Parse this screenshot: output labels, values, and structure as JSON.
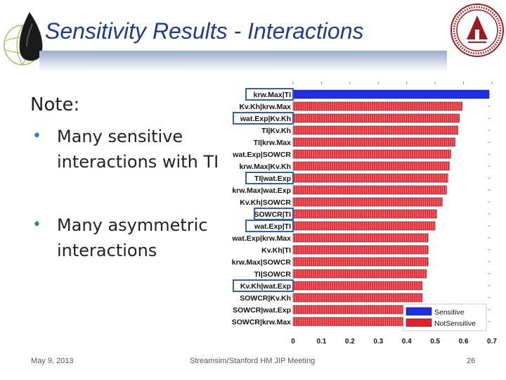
{
  "slide": {
    "title": "Sensitivity Results - Interactions",
    "note": "Note:",
    "bullets": [
      "Many sensitive interactions with TI",
      "Many asymmetric interactions"
    ],
    "footer": {
      "date": "May 9, 2013",
      "center": "Streamsim/Stanford HM JIP Meeting",
      "page": "26"
    }
  },
  "colors": {
    "title": "#1f3a8f",
    "bullet": "#2b7fb8",
    "sensitive": "#1f2fe0",
    "not_sensitive": "#e0202a",
    "highlight_box": "#3b5f9e"
  },
  "icons": {
    "left_logo": "globe-drop-logo",
    "right_logo": "university-seal"
  },
  "chart_data": {
    "type": "bar",
    "orientation": "horizontal",
    "categories": [
      "krw.Max|TI",
      "Kv.Kh|krw.Max",
      "wat.Exp|Kv.Kh",
      "TI|Kv.Kh",
      "TI|krw.Max",
      "wat.Exp|SOWCR",
      "krw.Max|Kv.Kh",
      "TI|wat.Exp",
      "krw.Max|wat.Exp",
      "Kv.Kh|SOWCR",
      "SOWCR|TI",
      "wat.Exp|TI",
      "wat.Exp|krw.Max",
      "Kv.Kh|TI",
      "krw.Max|SOWCR",
      "TI|SOWCR",
      "Kv.Kh|wat.Exp",
      "SOWCR|Kv.Kh",
      "SOWCR|wat.Exp",
      "SOWCR|krw.Max"
    ],
    "values": [
      0.69,
      0.595,
      0.585,
      0.58,
      0.57,
      0.555,
      0.55,
      0.545,
      0.54,
      0.525,
      0.505,
      0.5,
      0.475,
      0.475,
      0.475,
      0.47,
      0.455,
      0.455,
      0.445,
      0.44
    ],
    "status": [
      "Sensitive",
      "Not Sensitive",
      "Not Sensitive",
      "Not Sensitive",
      "Not Sensitive",
      "Not Sensitive",
      "Not Sensitive",
      "Not Sensitive",
      "Not Sensitive",
      "Not Sensitive",
      "Not Sensitive",
      "Not Sensitive",
      "Not Sensitive",
      "Not Sensitive",
      "Not Sensitive",
      "Not Sensitive",
      "Not Sensitive",
      "Not Sensitive",
      "Not Sensitive",
      "Not Sensitive"
    ],
    "highlighted": [
      "krw.Max|TI",
      "wat.Exp|Kv.Kh",
      "TI|wat.Exp",
      "SOWCR|TI",
      "wat.Exp|TI",
      "Kv.Kh|wat.Exp"
    ],
    "xticks": [
      "0",
      "0.1",
      "0.2",
      "0.3",
      "0.4",
      "0.5",
      "0.6",
      "0.7"
    ],
    "xlim": [
      0,
      0.7
    ],
    "legend": {
      "entries": [
        "Sensitive",
        "NotSensitive"
      ],
      "position": "bottom-right"
    },
    "title": "",
    "xlabel": "",
    "ylabel": ""
  }
}
